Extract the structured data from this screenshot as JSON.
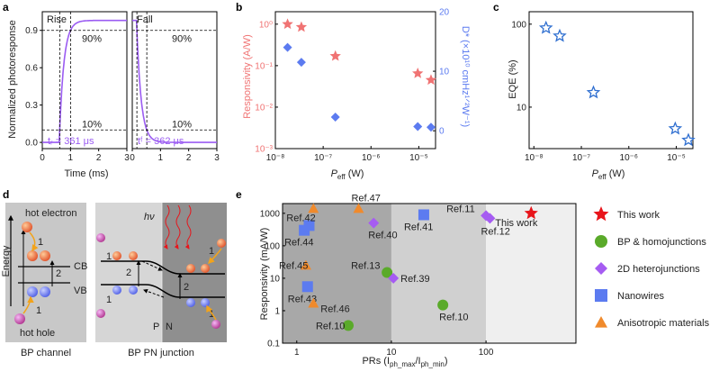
{
  "colors": {
    "purple": "#9b5cf2",
    "red": "#f07373",
    "blue": "#5c7bf0",
    "star_blue": "#2f6fd0",
    "green": "#5aaa2a",
    "violet": "#a65cf2",
    "orange": "#f08a2c",
    "dark_red": "#e8151b"
  },
  "panel_labels": [
    "a",
    "b",
    "c",
    "d",
    "e"
  ],
  "chart_data": [
    {
      "panel": "a",
      "type": "line",
      "subplots": [
        {
          "title": "Rise",
          "xlim": [
            0,
            3
          ],
          "ylim": [
            -0.05,
            1.05
          ],
          "xticks": [
            0,
            1,
            2,
            3
          ],
          "ref_90": "90%",
          "ref_10": "10%",
          "time_label": "tᵣ = 361 μs",
          "t_on": 0.6,
          "tau": 0.16,
          "baseline": 0.0,
          "plateau": 0.98
        },
        {
          "title": "Fall",
          "xlim": [
            0,
            3
          ],
          "ylim": [
            -0.05,
            1.05
          ],
          "xticks": [
            0,
            1,
            2,
            3
          ],
          "ref_90": "90%",
          "ref_10": "10%",
          "time_label": "tᶠ = 362 μs",
          "t_off": 0.15,
          "tau": 0.16,
          "baseline": 0.0,
          "plateau": 0.98
        }
      ],
      "ylabel": "Normalized photoresponse",
      "xlabel": "Time (ms)",
      "yticks": [
        0.0,
        0.3,
        0.6,
        0.9
      ],
      "ytick_labels": [
        "0.0",
        "0.3",
        "0.6",
        "0.9"
      ]
    },
    {
      "panel": "b",
      "type": "scatter",
      "xlabel": "P",
      "xlabel_sub": "eff",
      "xlabel_unit": " (W)",
      "x_scale": "log",
      "xlim_exp": [
        -8,
        -4.65
      ],
      "xtick_labels": [
        "10⁻⁸",
        "10⁻⁷",
        "10⁻⁶",
        "10⁻⁵"
      ],
      "ylabel_left": "Responsivity (A/W)",
      "ylim_left_exp": [
        -3,
        0.3
      ],
      "ytick_left_labels": [
        "10⁰",
        "10⁻¹",
        "10⁻²",
        "10⁻³"
      ],
      "ylabel_right": "D* (×10¹⁰ cmHz¹ᐟ²W⁻¹)",
      "ylim_right": [
        -3,
        20
      ],
      "ytick_right": [
        0,
        10,
        20
      ],
      "series": [
        {
          "name": "Responsivity",
          "axis": "left",
          "marker": "star",
          "x": [
            1.8e-08,
            3.5e-08,
            1.8e-07,
            9.5e-06,
            1.8e-05
          ],
          "y": [
            1.0,
            0.85,
            0.17,
            0.065,
            0.045
          ]
        },
        {
          "name": "D*",
          "axis": "right",
          "marker": "diamond",
          "x": [
            1.8e-08,
            3.5e-08,
            1.8e-07,
            9.5e-06,
            1.8e-05
          ],
          "y": [
            14,
            11.5,
            2.3,
            0.7,
            0.6
          ]
        }
      ]
    },
    {
      "panel": "c",
      "type": "scatter",
      "xlabel": "P",
      "xlabel_sub": "eff",
      "xlabel_unit": " (W)",
      "x_scale": "log",
      "y_scale": "log",
      "xlim_exp": [
        -8.1,
        -4.65
      ],
      "ylim_exp": [
        0.5,
        2.15
      ],
      "xtick_labels": [
        "10⁻⁸",
        "10⁻⁷",
        "10⁻⁶",
        "10⁻⁵"
      ],
      "ylabel": "EQE (%)",
      "ytick_labels": [
        "100",
        "10"
      ],
      "series": [
        {
          "name": "EQE",
          "marker": "open-star",
          "x": [
            1.8e-08,
            3.5e-08,
            1.8e-07,
            9.5e-06,
            1.8e-05
          ],
          "y": [
            90,
            72,
            15,
            5.5,
            4.0
          ]
        }
      ]
    },
    {
      "panel": "e",
      "type": "scatter",
      "xlabel": "PRs (I",
      "xlabel_sub1": "ph_max",
      "xlabel_mid": "/I",
      "xlabel_sub2": "ph_min",
      "xlabel_end": ")",
      "ylabel": "Responsivity (mA/W)",
      "x_scale": "log",
      "y_scale": "log",
      "xtick_labels": [
        "1",
        "10",
        "100"
      ],
      "ytick_labels": [
        "1000",
        "100",
        "10",
        "1",
        "0.1"
      ],
      "series": [
        {
          "name": "This work",
          "marker": "star",
          "points": [
            {
              "x": 300,
              "y": 1000,
              "label": "This  work"
            }
          ]
        },
        {
          "name": "BP & homojunctions",
          "marker": "circle",
          "points": [
            {
              "x": 3.5,
              "y": 0.35,
              "label": "Ref.10"
            },
            {
              "x": 35,
              "y": 1.5,
              "label": "Ref.10"
            },
            {
              "x": 9,
              "y": 15,
              "label": "Ref.13"
            }
          ]
        },
        {
          "name": "2D heterojunctions",
          "marker": "diamond",
          "points": [
            {
              "x": 6.5,
              "y": 500,
              "label": "Ref.40"
            },
            {
              "x": 10.5,
              "y": 10,
              "label": "Ref.39"
            },
            {
              "x": 100,
              "y": 850,
              "label": "Ref.11"
            },
            {
              "x": 110,
              "y": 700,
              "label": "Ref.12"
            }
          ]
        },
        {
          "name": "Nanowires",
          "marker": "square",
          "points": [
            {
              "x": 1.3,
              "y": 5.5,
              "label": "Ref.43"
            },
            {
              "x": 1.2,
              "y": 300,
              "label": "Ref.44"
            },
            {
              "x": 1.35,
              "y": 420,
              "label": ""
            },
            {
              "x": 22,
              "y": 900,
              "label": "Ref.41"
            }
          ]
        },
        {
          "name": "Anisotropic materials",
          "marker": "triangle",
          "points": [
            {
              "x": 1.5,
              "y": 1400,
              "label": "Ref.42"
            },
            {
              "x": 1.25,
              "y": 25,
              "label": "Ref.45"
            },
            {
              "x": 1.5,
              "y": 1.7,
              "label": "Ref.46"
            },
            {
              "x": 4.5,
              "y": 1400,
              "label": "Ref.47"
            }
          ]
        }
      ],
      "legend": [
        "This work",
        "BP & homojunctions",
        "2D heterojunctions",
        "Nanowires",
        "Anisotropic materials"
      ]
    }
  ],
  "diagram_d": {
    "left_caption": "BP channel",
    "right_caption": "BP PN junction",
    "hot_electron": "hot electron",
    "hot_hole": "hot hole",
    "cb": "CB",
    "vb": "VB",
    "energy": "Energy",
    "hv": "hν",
    "p": "P",
    "n": "N",
    "n1": "1",
    "n2": "2"
  }
}
